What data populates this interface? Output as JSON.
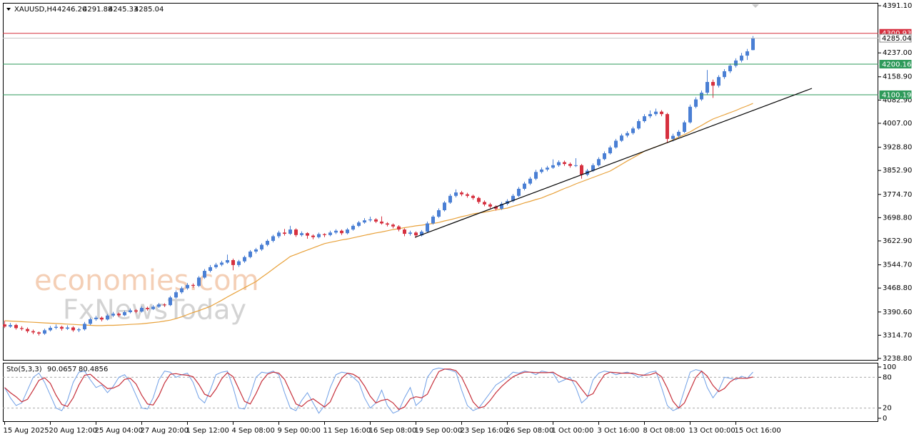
{
  "chart_data": {
    "type": "candlestick",
    "symbol": "XAUUSD,H4",
    "last_labels": [
      "4246.20",
      "4291.88",
      "4245.33",
      "4285.04"
    ],
    "up_color": "#4a7fd4",
    "down_color": "#d6303f",
    "categories": [
      "15 Aug 2025",
      null,
      null,
      null,
      null,
      null,
      null,
      null,
      "20 Aug 12:00",
      null,
      null,
      null,
      null,
      null,
      null,
      null,
      "25 Aug 04:00",
      null,
      null,
      null,
      null,
      null,
      null,
      null,
      "27 Aug 20:00",
      null,
      null,
      null,
      null,
      null,
      null,
      null,
      "1 Sep 12:00",
      null,
      null,
      null,
      null,
      null,
      null,
      null,
      "4 Sep 08:00",
      null,
      null,
      null,
      null,
      null,
      null,
      null,
      "9 Sep 00:00",
      null,
      null,
      null,
      null,
      null,
      null,
      null,
      "11 Sep 16:00",
      null,
      null,
      null,
      null,
      null,
      null,
      null,
      "16 Sep 08:00",
      null,
      null,
      null,
      null,
      null,
      null,
      null,
      "19 Sep 00:00",
      null,
      null,
      null,
      null,
      null,
      null,
      null,
      "23 Sep 16:00",
      null,
      null,
      null,
      null,
      null,
      null,
      null,
      "26 Sep 08:00",
      null,
      null,
      null,
      null,
      null,
      null,
      null,
      "1 Oct 00:00",
      null,
      null,
      null,
      null,
      null,
      null,
      null,
      "3 Oct 16:00",
      null,
      null,
      null,
      null,
      null,
      null,
      null,
      "8 Oct 08:00",
      null,
      null,
      null,
      null,
      null,
      null,
      null,
      "13 Oct 00:00",
      null,
      null,
      null,
      null,
      null,
      null,
      null,
      "15 Oct 16:00",
      null,
      null,
      null
    ],
    "ohlc": [
      [
        3350,
        3362,
        3338,
        3343
      ],
      [
        3343,
        3355,
        3339,
        3348
      ],
      [
        3348,
        3352,
        3333,
        3338
      ],
      [
        3338,
        3344,
        3330,
        3335
      ],
      [
        3335,
        3340,
        3322,
        3328
      ],
      [
        3328,
        3333,
        3318,
        3324
      ],
      [
        3324,
        3327,
        3314,
        3320
      ],
      [
        3320,
        3336,
        3316,
        3331
      ],
      [
        3331,
        3345,
        3327,
        3339
      ],
      [
        3339,
        3350,
        3334,
        3342
      ],
      [
        3342,
        3346,
        3330,
        3336
      ],
      [
        3336,
        3347,
        3332,
        3340
      ],
      [
        3340,
        3344,
        3326,
        3331
      ],
      [
        3331,
        3339,
        3325,
        3334
      ],
      [
        3334,
        3358,
        3330,
        3352
      ],
      [
        3352,
        3372,
        3348,
        3367
      ],
      [
        3367,
        3378,
        3362,
        3372
      ],
      [
        3372,
        3376,
        3360,
        3366
      ],
      [
        3366,
        3384,
        3363,
        3379
      ],
      [
        3379,
        3391,
        3374,
        3385
      ],
      [
        3385,
        3389,
        3375,
        3380
      ],
      [
        3380,
        3395,
        3377,
        3390
      ],
      [
        3390,
        3402,
        3386,
        3396
      ],
      [
        3396,
        3400,
        3387,
        3392
      ],
      [
        3392,
        3409,
        3389,
        3404
      ],
      [
        3404,
        3408,
        3395,
        3400
      ],
      [
        3400,
        3413,
        3397,
        3408
      ],
      [
        3408,
        3420,
        3404,
        3415
      ],
      [
        3415,
        3419,
        3407,
        3413
      ],
      [
        3413,
        3443,
        3410,
        3438
      ],
      [
        3438,
        3461,
        3434,
        3455
      ],
      [
        3455,
        3474,
        3450,
        3468
      ],
      [
        3468,
        3485,
        3463,
        3479
      ],
      [
        3479,
        3484,
        3470,
        3476
      ],
      [
        3476,
        3508,
        3472,
        3503
      ],
      [
        3503,
        3531,
        3499,
        3525
      ],
      [
        3525,
        3544,
        3520,
        3537
      ],
      [
        3537,
        3551,
        3532,
        3545
      ],
      [
        3545,
        3558,
        3540,
        3552
      ],
      [
        3552,
        3578,
        3548,
        3560
      ],
      [
        3560,
        3565,
        3527,
        3544
      ],
      [
        3544,
        3561,
        3538,
        3556
      ],
      [
        3556,
        3575,
        3551,
        3570
      ],
      [
        3570,
        3593,
        3566,
        3588
      ],
      [
        3588,
        3600,
        3582,
        3595
      ],
      [
        3595,
        3615,
        3590,
        3610
      ],
      [
        3610,
        3628,
        3605,
        3623
      ],
      [
        3623,
        3643,
        3618,
        3638
      ],
      [
        3638,
        3656,
        3632,
        3650
      ],
      [
        3650,
        3662,
        3640,
        3646
      ],
      [
        3646,
        3672,
        3642,
        3660
      ],
      [
        3660,
        3664,
        3636,
        3642
      ],
      [
        3642,
        3654,
        3637,
        3648
      ],
      [
        3648,
        3651,
        3630,
        3640
      ],
      [
        3640,
        3644,
        3628,
        3635
      ],
      [
        3635,
        3650,
        3631,
        3645
      ],
      [
        3645,
        3648,
        3635,
        3642
      ],
      [
        3642,
        3656,
        3638,
        3650
      ],
      [
        3650,
        3661,
        3645,
        3656
      ],
      [
        3656,
        3660,
        3642,
        3648
      ],
      [
        3648,
        3665,
        3644,
        3660
      ],
      [
        3660,
        3677,
        3656,
        3672
      ],
      [
        3672,
        3688,
        3668,
        3683
      ],
      [
        3683,
        3697,
        3679,
        3690
      ],
      [
        3690,
        3702,
        3685,
        3693
      ],
      [
        3693,
        3697,
        3681,
        3686
      ],
      [
        3686,
        3703,
        3676,
        3680
      ],
      [
        3680,
        3684,
        3670,
        3676
      ],
      [
        3676,
        3680,
        3664,
        3670
      ],
      [
        3670,
        3674,
        3654,
        3660
      ],
      [
        3660,
        3664,
        3638,
        3646
      ],
      [
        3646,
        3656,
        3640,
        3650
      ],
      [
        3650,
        3654,
        3633,
        3641
      ],
      [
        3641,
        3658,
        3637,
        3653
      ],
      [
        3653,
        3686,
        3649,
        3680
      ],
      [
        3680,
        3707,
        3676,
        3702
      ],
      [
        3702,
        3729,
        3698,
        3723
      ],
      [
        3723,
        3753,
        3719,
        3748
      ],
      [
        3748,
        3776,
        3744,
        3770
      ],
      [
        3770,
        3791,
        3765,
        3781
      ],
      [
        3781,
        3786,
        3769,
        3775
      ],
      [
        3775,
        3780,
        3764,
        3770
      ],
      [
        3770,
        3774,
        3757,
        3763
      ],
      [
        3763,
        3767,
        3744,
        3750
      ],
      [
        3750,
        3755,
        3736,
        3742
      ],
      [
        3742,
        3747,
        3729,
        3735
      ],
      [
        3735,
        3739,
        3722,
        3728
      ],
      [
        3728,
        3750,
        3724,
        3744
      ],
      [
        3744,
        3759,
        3739,
        3753
      ],
      [
        3753,
        3776,
        3749,
        3770
      ],
      [
        3770,
        3799,
        3766,
        3793
      ],
      [
        3793,
        3816,
        3788,
        3810
      ],
      [
        3810,
        3832,
        3805,
        3826
      ],
      [
        3826,
        3855,
        3821,
        3848
      ],
      [
        3848,
        3863,
        3843,
        3856
      ],
      [
        3856,
        3868,
        3850,
        3862
      ],
      [
        3862,
        3889,
        3858,
        3870
      ],
      [
        3870,
        3886,
        3865,
        3880
      ],
      [
        3880,
        3885,
        3868,
        3874
      ],
      [
        3874,
        3879,
        3862,
        3868
      ],
      [
        3868,
        3893,
        3864,
        3870
      ],
      [
        3870,
        3874,
        3826,
        3839
      ],
      [
        3839,
        3858,
        3834,
        3852
      ],
      [
        3852,
        3876,
        3848,
        3870
      ],
      [
        3870,
        3896,
        3866,
        3890
      ],
      [
        3890,
        3915,
        3886,
        3909
      ],
      [
        3909,
        3934,
        3905,
        3928
      ],
      [
        3928,
        3956,
        3924,
        3950
      ],
      [
        3950,
        3973,
        3946,
        3967
      ],
      [
        3967,
        3981,
        3961,
        3975
      ],
      [
        3975,
        3996,
        3970,
        3990
      ],
      [
        3990,
        4020,
        3986,
        4014
      ],
      [
        4014,
        4037,
        4009,
        4030
      ],
      [
        4030,
        4049,
        4024,
        4037
      ],
      [
        4037,
        4055,
        4031,
        4045
      ],
      [
        4045,
        4050,
        4030,
        4037
      ],
      [
        4037,
        4041,
        3945,
        3956
      ],
      [
        3956,
        3973,
        3948,
        3966
      ],
      [
        3966,
        3985,
        3960,
        3979
      ],
      [
        3979,
        4016,
        3975,
        4010
      ],
      [
        4010,
        4068,
        4006,
        4061
      ],
      [
        4061,
        4092,
        4056,
        4085
      ],
      [
        4085,
        4114,
        4080,
        4107
      ],
      [
        4107,
        4181,
        4101,
        4142
      ],
      [
        4142,
        4150,
        4090,
        4130
      ],
      [
        4130,
        4164,
        4124,
        4158
      ],
      [
        4158,
        4184,
        4152,
        4177
      ],
      [
        4177,
        4202,
        4171,
        4195
      ],
      [
        4195,
        4219,
        4189,
        4212
      ],
      [
        4212,
        4237,
        4206,
        4228
      ],
      [
        4228,
        4250,
        4214,
        4242
      ],
      [
        4246.2,
        4291.88,
        4245.33,
        4285.04
      ]
    ],
    "ma": {
      "color": "#e8a13a",
      "values": [
        3362,
        3361,
        3360,
        3359,
        3358,
        3357,
        3356,
        3355,
        3354,
        3353,
        3352,
        3351,
        3350,
        3349,
        3348,
        3347,
        3346,
        3346,
        3347,
        3347,
        3348,
        3349,
        3350,
        3351,
        3352,
        3354,
        3356,
        3358,
        3361,
        3364,
        3369,
        3375,
        3382,
        3389,
        3395,
        3402,
        3409,
        3419,
        3429,
        3440,
        3450,
        3460,
        3470,
        3480,
        3490,
        3504,
        3517,
        3531,
        3545,
        3558,
        3572,
        3579,
        3586,
        3593,
        3600,
        3607,
        3614,
        3618,
        3622,
        3626,
        3629,
        3633,
        3637,
        3641,
        3645,
        3649,
        3652,
        3656,
        3660,
        3663,
        3666,
        3669,
        3672,
        3674,
        3677,
        3680,
        3683,
        3688,
        3692,
        3697,
        3702,
        3706,
        3711,
        3714,
        3717,
        3720,
        3724,
        3727,
        3730,
        3736,
        3741,
        3747,
        3752,
        3758,
        3763,
        3771,
        3778,
        3786,
        3794,
        3801,
        3809,
        3816,
        3823,
        3830,
        3837,
        3844,
        3851,
        3862,
        3873,
        3884,
        3894,
        3905,
        3916,
        3923,
        3930,
        3937,
        3944,
        3953,
        3962,
        3970,
        3979,
        3990,
        4000,
        4011,
        4021,
        4028,
        4035,
        4042,
        4049,
        4057,
        4064,
        4072
      ]
    },
    "levels": [
      {
        "value": 4300.93,
        "color": "#d6303f",
        "text_color": "#ffffff"
      },
      {
        "value": 4285.04,
        "color": "#c8c8c8",
        "text_color": "#000000"
      },
      {
        "value": 4200.16,
        "color": "#2e9a5a",
        "text_color": "#ffffff"
      },
      {
        "value": 4100.19,
        "color": "#2e9a5a",
        "text_color": "#ffffff"
      }
    ],
    "ylim": [
      3231.8,
      4400.4
    ],
    "yticks": [
      {
        "value": 4391.1,
        "label": "4391.10"
      },
      {
        "value": 4237,
        "label": "4237.00"
      },
      {
        "value": 4158.9,
        "label": "4158.90"
      },
      {
        "value": 4082.9,
        "label": "4082.90"
      },
      {
        "value": 4007,
        "label": "4007.00"
      },
      {
        "value": 3928.8,
        "label": "3928.80"
      },
      {
        "value": 3852.9,
        "label": "3852.90"
      },
      {
        "value": 3774.7,
        "label": "3774.70"
      },
      {
        "value": 3698.8,
        "label": "3698.80"
      },
      {
        "value": 3622.9,
        "label": "3622.90"
      },
      {
        "value": 3544.7,
        "label": "3544.70"
      },
      {
        "value": 3468.8,
        "label": "3468.80"
      },
      {
        "value": 3390.6,
        "label": "3390.60"
      },
      {
        "value": 3314.7,
        "label": "3314.70"
      },
      {
        "value": 3238.8,
        "label": "3238.80"
      }
    ],
    "watermark": [
      "economies.com",
      "FxNewsToday"
    ],
    "stochastic": {
      "name": "Sto(5,3,3)",
      "ylim": [
        -5.6,
        108.3
      ],
      "yticks": [
        100,
        80,
        20,
        0
      ],
      "k": {
        "color": "#6f9fe6",
        "values": [
          60,
          40,
          25,
          30,
          55,
          80,
          88,
          70,
          45,
          20,
          15,
          35,
          70,
          90,
          92,
          75,
          60,
          65,
          50,
          62,
          80,
          85,
          70,
          45,
          20,
          18,
          40,
          75,
          92,
          90,
          80,
          85,
          88,
          70,
          40,
          30,
          55,
          85,
          90,
          92,
          60,
          20,
          18,
          45,
          80,
          90,
          88,
          92,
          85,
          50,
          20,
          15,
          35,
          50,
          30,
          10,
          25,
          60,
          85,
          90,
          88,
          80,
          70,
          40,
          20,
          30,
          55,
          25,
          10,
          15,
          40,
          60,
          25,
          35,
          80,
          95,
          98,
          96,
          94,
          90,
          55,
          25,
          15,
          20,
          35,
          50,
          65,
          72,
          80,
          90,
          88,
          92,
          90,
          85,
          92,
          90,
          88,
          70,
          75,
          80,
          60,
          30,
          40,
          75,
          88,
          92,
          90,
          85,
          88,
          90,
          86,
          80,
          85,
          90,
          92,
          60,
          25,
          15,
          20,
          55,
          90,
          95,
          92,
          60,
          40,
          55,
          80,
          78,
          75,
          82,
          78,
          90.0657
        ]
      },
      "d": {
        "color": "#c62f3a",
        "values": [
          60,
          50,
          42,
          32,
          37,
          55,
          74,
          79,
          68,
          45,
          27,
          23,
          40,
          65,
          84,
          86,
          76,
          67,
          58,
          59,
          64,
          76,
          78,
          67,
          45,
          28,
          26,
          44,
          69,
          86,
          87,
          85,
          84,
          81,
          66,
          47,
          42,
          57,
          77,
          89,
          81,
          57,
          33,
          28,
          48,
          72,
          86,
          90,
          88,
          76,
          52,
          28,
          23,
          33,
          38,
          30,
          22,
          32,
          57,
          78,
          88,
          86,
          79,
          63,
          43,
          30,
          35,
          37,
          30,
          17,
          22,
          38,
          42,
          40,
          47,
          70,
          91,
          96,
          96,
          93,
          80,
          57,
          32,
          20,
          23,
          35,
          50,
          62,
          72,
          81,
          86,
          90,
          90,
          89,
          89,
          89,
          90,
          83,
          78,
          75,
          72,
          57,
          43,
          48,
          68,
          85,
          90,
          89,
          88,
          88,
          88,
          85,
          84,
          85,
          89,
          81,
          59,
          33,
          20,
          30,
          55,
          80,
          92,
          82,
          64,
          52,
          58,
          71,
          78,
          78,
          78,
          80.4856
        ]
      }
    }
  }
}
